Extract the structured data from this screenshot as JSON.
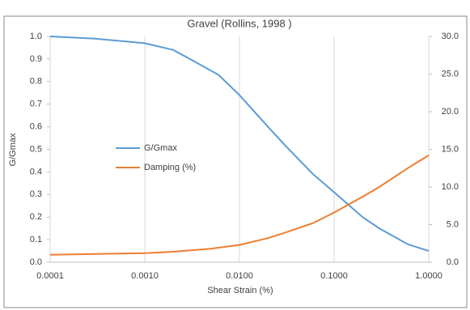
{
  "chart_data": {
    "type": "line",
    "title": "Gravel (Rollins, 1998 )",
    "x_label": "Shear Strain (%)",
    "y_label": "G/Gmax",
    "xscale": "log",
    "xlim": [
      0.0001,
      1
    ],
    "xticks": [
      {
        "value": 0.0001,
        "label": "0.0001"
      },
      {
        "value": 0.001,
        "label": "0.0010"
      },
      {
        "value": 0.01,
        "label": "0.0100"
      },
      {
        "value": 0.1,
        "label": "0.1000"
      },
      {
        "value": 1,
        "label": "1.0000"
      }
    ],
    "ylim": [
      0,
      1
    ],
    "yticks": [
      {
        "value": 0,
        "label": "0.0"
      },
      0.1,
      0.2,
      0.3,
      0.4,
      0.5,
      0.6,
      0.7,
      0.8,
      0.9,
      {
        "value": 1,
        "label": "1.0"
      }
    ],
    "y2lim": [
      0,
      30
    ],
    "y2ticks": [
      {
        "value": 0,
        "label": "0.0"
      },
      {
        "value": 5,
        "label": "5.0"
      },
      {
        "value": 10,
        "label": "10.0"
      },
      {
        "value": 15,
        "label": "15.0"
      },
      {
        "value": 20,
        "label": "20.0"
      },
      {
        "value": 25,
        "label": "25.0"
      },
      {
        "value": 30,
        "label": "30.0"
      }
    ],
    "grid": "x",
    "series": [
      {
        "name": "G/Gmax",
        "color": "#5b9bd5",
        "x": [
          0.0001,
          0.0003,
          0.001,
          0.002,
          0.003,
          0.006,
          0.01,
          0.02,
          0.03,
          0.06,
          0.1,
          0.2,
          0.3,
          0.6,
          1
        ],
        "values": [
          1.0,
          0.99,
          0.97,
          0.94,
          0.9,
          0.83,
          0.74,
          0.6,
          0.52,
          0.39,
          0.31,
          0.2,
          0.15,
          0.08,
          0.05
        ]
      },
      {
        "name": "Damping (%)",
        "color": "#ed7d31",
        "axis": "y2",
        "x": [
          0.0001,
          0.001,
          0.002,
          0.005,
          0.01,
          0.02,
          0.03,
          0.06,
          0.1,
          0.2,
          0.3,
          0.6,
          1
        ],
        "values": [
          1.0,
          1.2,
          1.4,
          1.8,
          2.3,
          3.2,
          3.9,
          5.2,
          6.6,
          8.7,
          10.0,
          12.5,
          14.2
        ]
      }
    ]
  }
}
